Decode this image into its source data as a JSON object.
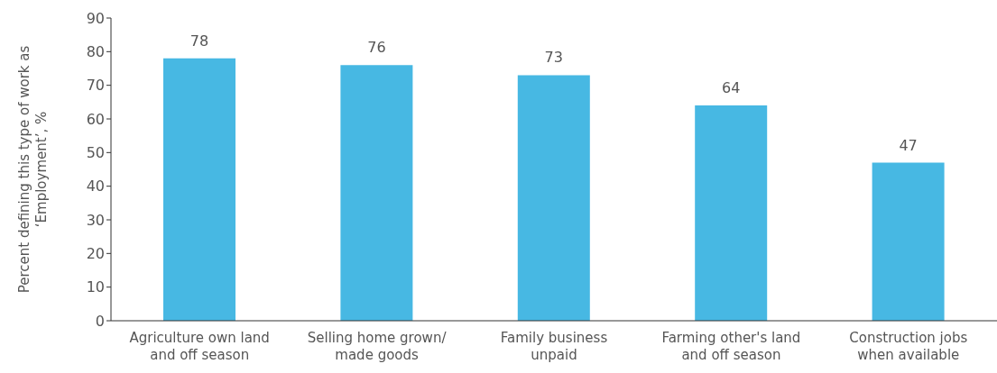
{
  "chart_data": {
    "type": "bar",
    "ylabel": "Percent defining this type of work as\n‘Employment’, %",
    "categories": [
      "Agriculture own land\nand off season",
      "Selling home grown/\nmade goods",
      "Family business\nunpaid",
      "Farming other's land\nand off season",
      "Construction jobs\nwhen available"
    ],
    "values": [
      78,
      76,
      73,
      64,
      47
    ],
    "color": "#47b8e3",
    "data_labels": true,
    "ylim": [
      0,
      90
    ],
    "yticks": [
      0,
      10,
      20,
      30,
      40,
      50,
      60,
      70,
      80,
      90
    ],
    "grid": false
  }
}
